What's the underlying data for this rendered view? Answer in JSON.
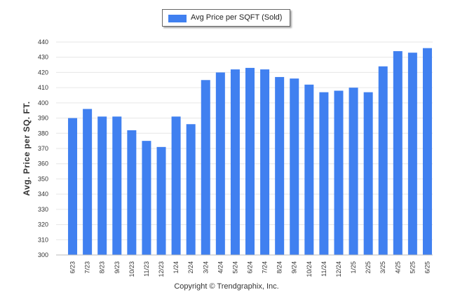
{
  "legend": {
    "label": "Avg Price per SQFT (Sold)"
  },
  "footer": {
    "text": "Copyright © Trendgraphix, Inc."
  },
  "colors": {
    "bar": "#4080f0",
    "grid": "#e6e6e6",
    "axis": "#bbbbbb"
  },
  "chart_data": {
    "type": "bar",
    "title": "",
    "xlabel": "",
    "ylabel": "Avg. Price per SQ. FT.",
    "ylim": [
      300,
      440
    ],
    "yticks": [
      300,
      310,
      320,
      330,
      340,
      350,
      360,
      370,
      380,
      390,
      400,
      410,
      420,
      430,
      440
    ],
    "grid": true,
    "legend_position": "top-center",
    "categories": [
      "6/23",
      "7/23",
      "8/23",
      "9/23",
      "10/23",
      "11/23",
      "12/23",
      "1/24",
      "2/24",
      "3/24",
      "4/24",
      "5/24",
      "6/24",
      "7/24",
      "8/24",
      "9/24",
      "10/24",
      "11/24",
      "12/24",
      "1/25",
      "2/25",
      "3/25",
      "4/25",
      "5/25",
      "6/25"
    ],
    "series": [
      {
        "name": "Avg Price per SQFT (Sold)",
        "values": [
          390,
          396,
          391,
          391,
          382,
          375,
          371,
          391,
          386,
          415,
          420,
          422,
          423,
          422,
          417,
          416,
          412,
          407,
          408,
          410,
          407,
          424,
          434,
          433,
          436
        ]
      }
    ]
  }
}
